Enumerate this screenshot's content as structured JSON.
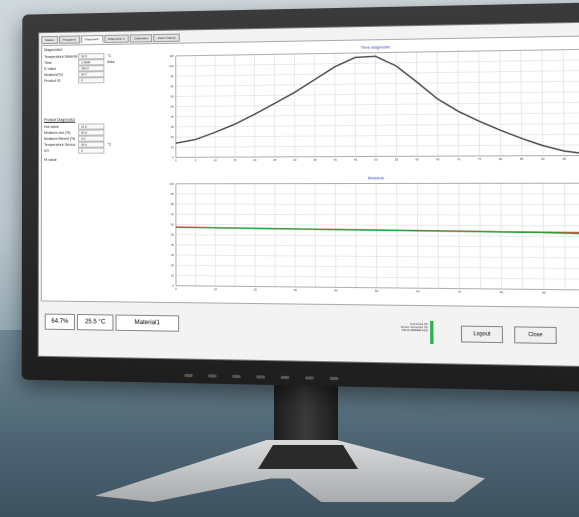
{
  "tabs": [
    {
      "label": "Status"
    },
    {
      "label": "Programs"
    },
    {
      "label": "Diagnostic"
    },
    {
      "label": "Diagnostic 2"
    },
    {
      "label": "Calibration"
    },
    {
      "label": "Alarm history"
    }
  ],
  "active_tab": 2,
  "left_panel": {
    "group1_title": "Diagnostics",
    "group1_rows": [
      {
        "label": "Temperature Material",
        "value": "25.5",
        "unit": "°C"
      },
      {
        "label": "Time",
        "value": "1:0806",
        "unit": "ticks"
      },
      {
        "label": "E-Value",
        "value": "350.0",
        "unit": ""
      },
      {
        "label": "Moisture(%)",
        "value": "64.7",
        "unit": ""
      },
      {
        "label": "Product ID",
        "value": "5",
        "unit": ""
      }
    ],
    "group2_title": "Product Diagnostics",
    "group2_rows": [
      {
        "label": "Hot value",
        "value": "11.0",
        "unit": ""
      },
      {
        "label": "Moisture raw (%)",
        "value": "64.6",
        "unit": ""
      },
      {
        "label": "Moisture filtered (%)",
        "value": "0.0",
        "unit": ""
      },
      {
        "label": "Temperature Sensor",
        "value": "26.5",
        "unit": "°C"
      },
      {
        "label": "I/O",
        "value": "0",
        "unit": ""
      }
    ],
    "footer_text": "Hi value"
  },
  "status_bar": {
    "moisture": "64.7%",
    "temperature": "25.5 °C",
    "material": "Material1"
  },
  "info_lines": [
    "Connected OK",
    "Sensor connection OK",
    "HW ID ####### 4410"
  ],
  "buttons": {
    "logout": "Logout",
    "close": "Close"
  },
  "colors": {
    "curve": "#4a4a4a",
    "grid": "#d6d6d6",
    "red": "#d7382a",
    "green": "#1fa43a",
    "title": "#2a3cc8"
  },
  "chart_data": [
    {
      "type": "line",
      "title": "Time diagnostic",
      "x": [
        0,
        5,
        10,
        15,
        20,
        25,
        30,
        35,
        40,
        45,
        50,
        55,
        60,
        65,
        70,
        75,
        80,
        85,
        90,
        95,
        100
      ],
      "series": [
        {
          "values": [
            16,
            20,
            28,
            37,
            48,
            60,
            72,
            86,
            100,
            110,
            111,
            100,
            82,
            63,
            49,
            38,
            28,
            19,
            11,
            5,
            2
          ]
        }
      ],
      "ylim": [
        0,
        115
      ],
      "grid": true
    },
    {
      "type": "line",
      "title": "Moisture",
      "x": [
        0,
        10,
        20,
        30,
        40,
        50,
        60,
        70,
        80,
        90,
        100
      ],
      "series": [
        {
          "color": "red",
          "values": [
            57.5,
            57,
            56.6,
            56.2,
            55.8,
            55.4,
            55,
            54.6,
            54.2,
            53.9,
            53.6
          ]
        },
        {
          "color": "green",
          "values": [
            57.2,
            56.8,
            56.4,
            56,
            55.5,
            55.1,
            54.7,
            54.3,
            53.9,
            53.5,
            52.5
          ]
        }
      ],
      "ylim": [
        0,
        100
      ],
      "grid": true
    }
  ]
}
